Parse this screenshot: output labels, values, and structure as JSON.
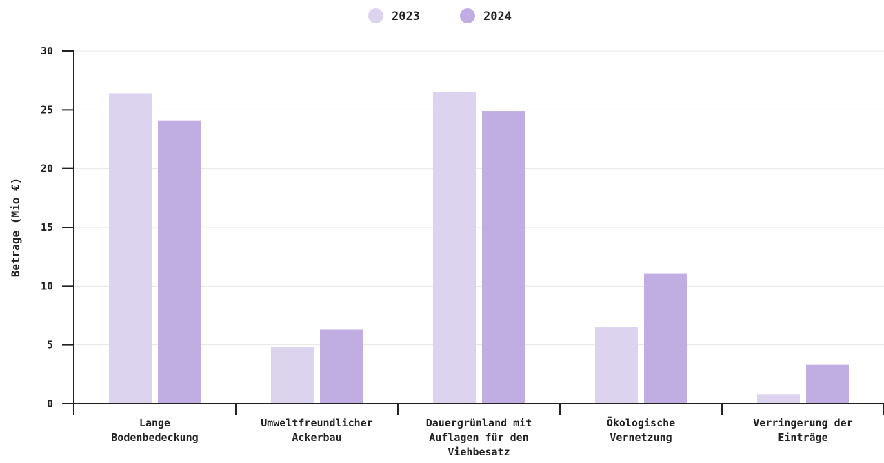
{
  "chart_data": {
    "type": "bar",
    "title": "",
    "xlabel": "",
    "ylabel": "Betrage (Mio €)",
    "ylim": [
      0,
      30
    ],
    "yticks": [
      0,
      5,
      10,
      15,
      20,
      25,
      30
    ],
    "grid": true,
    "legend_position": "top-center",
    "categories": [
      [
        "Lange",
        "Bodenbedeckung"
      ],
      [
        "Umweltfreundlicher",
        "Ackerbau"
      ],
      [
        "Dauergrünland mit",
        "Auflagen für den",
        "Viehbesatz"
      ],
      [
        "Ökologische",
        "Vernetzung"
      ],
      [
        "Verringerung der",
        "Einträge"
      ]
    ],
    "series": [
      {
        "name": "2023",
        "color": "#dcd3ef",
        "values": [
          26.4,
          4.8,
          26.5,
          6.5,
          0.8
        ]
      },
      {
        "name": "2024",
        "color": "#c0aee3",
        "values": [
          24.1,
          6.3,
          24.9,
          11.1,
          3.3
        ]
      }
    ]
  }
}
